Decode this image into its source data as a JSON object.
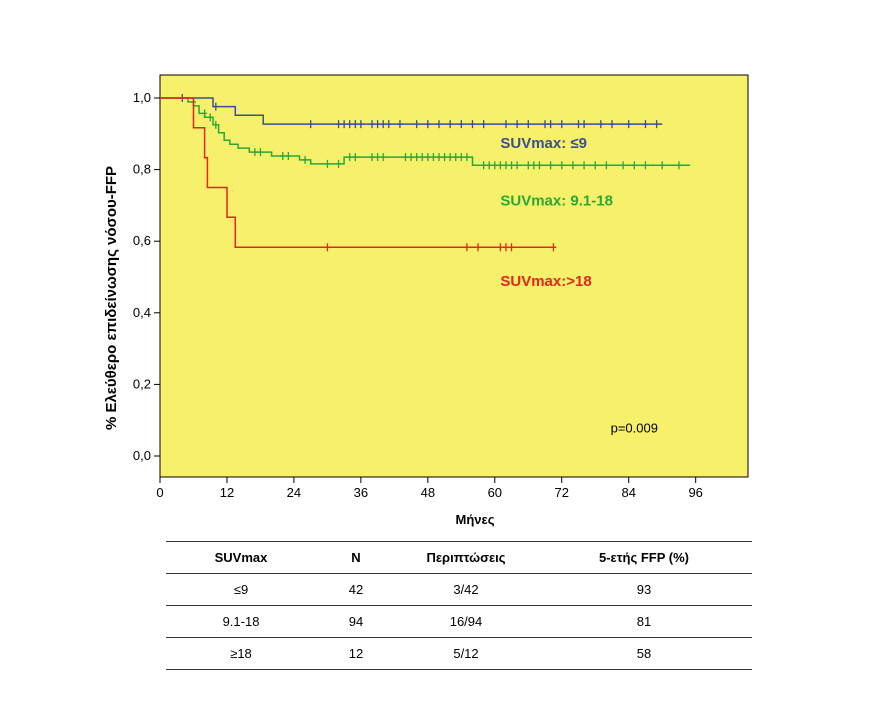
{
  "chart_data": {
    "type": "line",
    "subtype": "kaplan-meier",
    "ylabel": "% Ελεύθερο επιδείνωσης νόσου-FFP",
    "xlabel": "Μήνες",
    "xlim": [
      0,
      105
    ],
    "ylim": [
      -0.05,
      1.07
    ],
    "xticks": [
      0,
      12,
      24,
      36,
      48,
      60,
      72,
      84,
      96
    ],
    "xtick_labels": [
      "0",
      "12",
      "24",
      "36",
      "48",
      "60",
      "72",
      "84",
      "96"
    ],
    "yticks": [
      0.0,
      0.2,
      0.4,
      0.6,
      0.8,
      1.0
    ],
    "ytick_labels": [
      "0,0",
      "0,2",
      "0,4",
      "0,6",
      "0,8",
      "1,0"
    ],
    "plot_background": "#f7f06a",
    "grid": false,
    "annotation": "p=0.009",
    "series": [
      {
        "name": "SUVmax: ≤9",
        "color": "#3a4f94",
        "steps": [
          [
            0,
            1.0
          ],
          [
            9.5,
            1.0
          ],
          [
            9.5,
            0.976
          ],
          [
            13.5,
            0.976
          ],
          [
            13.5,
            0.952
          ],
          [
            18.5,
            0.952
          ],
          [
            18.5,
            0.927
          ],
          [
            90,
            0.927
          ]
        ],
        "censored": [
          [
            4,
            1.0
          ],
          [
            10,
            0.976
          ],
          [
            27,
            0.927
          ],
          [
            32,
            0.927
          ],
          [
            33,
            0.927
          ],
          [
            34,
            0.927
          ],
          [
            35,
            0.927
          ],
          [
            36,
            0.927
          ],
          [
            38,
            0.927
          ],
          [
            39,
            0.927
          ],
          [
            40,
            0.927
          ],
          [
            41,
            0.927
          ],
          [
            43,
            0.927
          ],
          [
            46,
            0.927
          ],
          [
            48,
            0.927
          ],
          [
            50,
            0.927
          ],
          [
            52,
            0.927
          ],
          [
            54,
            0.927
          ],
          [
            56,
            0.927
          ],
          [
            58,
            0.927
          ],
          [
            62,
            0.927
          ],
          [
            64,
            0.927
          ],
          [
            66,
            0.927
          ],
          [
            69,
            0.927
          ],
          [
            70,
            0.927
          ],
          [
            72,
            0.927
          ],
          [
            75,
            0.927
          ],
          [
            76,
            0.927
          ],
          [
            79,
            0.927
          ],
          [
            81,
            0.927
          ],
          [
            84,
            0.927
          ],
          [
            87,
            0.927
          ],
          [
            89,
            0.927
          ]
        ]
      },
      {
        "name": "SUVmax: 9.1-18",
        "color": "#2aa836",
        "steps": [
          [
            0,
            1.0
          ],
          [
            5,
            1.0
          ],
          [
            5,
            0.989
          ],
          [
            6,
            0.989
          ],
          [
            6,
            0.978
          ],
          [
            7,
            0.978
          ],
          [
            7,
            0.957
          ],
          [
            8,
            0.957
          ],
          [
            8,
            0.946
          ],
          [
            9.5,
            0.946
          ],
          [
            9.5,
            0.925
          ],
          [
            10.5,
            0.925
          ],
          [
            10.5,
            0.903
          ],
          [
            11.5,
            0.903
          ],
          [
            11.5,
            0.882
          ],
          [
            12.5,
            0.882
          ],
          [
            12.5,
            0.871
          ],
          [
            14,
            0.871
          ],
          [
            14,
            0.86
          ],
          [
            16,
            0.86
          ],
          [
            16,
            0.849
          ],
          [
            20,
            0.849
          ],
          [
            20,
            0.838
          ],
          [
            25,
            0.838
          ],
          [
            25,
            0.827
          ],
          [
            27,
            0.827
          ],
          [
            27,
            0.816
          ],
          [
            33,
            0.816
          ],
          [
            33,
            0.835
          ],
          [
            56,
            0.835
          ],
          [
            56,
            0.812
          ],
          [
            95,
            0.812
          ]
        ],
        "censored": [
          [
            6,
            0.989
          ],
          [
            8,
            0.957
          ],
          [
            9,
            0.946
          ],
          [
            10,
            0.925
          ],
          [
            17,
            0.849
          ],
          [
            18,
            0.849
          ],
          [
            22,
            0.838
          ],
          [
            23,
            0.838
          ],
          [
            26,
            0.827
          ],
          [
            30,
            0.816
          ],
          [
            32,
            0.816
          ],
          [
            34,
            0.835
          ],
          [
            35,
            0.835
          ],
          [
            38,
            0.835
          ],
          [
            39,
            0.835
          ],
          [
            40,
            0.835
          ],
          [
            44,
            0.835
          ],
          [
            45,
            0.835
          ],
          [
            46,
            0.835
          ],
          [
            47,
            0.835
          ],
          [
            48,
            0.835
          ],
          [
            49,
            0.835
          ],
          [
            50,
            0.835
          ],
          [
            51,
            0.835
          ],
          [
            52,
            0.835
          ],
          [
            53,
            0.835
          ],
          [
            54,
            0.835
          ],
          [
            55,
            0.835
          ],
          [
            58,
            0.812
          ],
          [
            59,
            0.812
          ],
          [
            60,
            0.812
          ],
          [
            61,
            0.812
          ],
          [
            62,
            0.812
          ],
          [
            63,
            0.812
          ],
          [
            64,
            0.812
          ],
          [
            66,
            0.812
          ],
          [
            67,
            0.812
          ],
          [
            68,
            0.812
          ],
          [
            70,
            0.812
          ],
          [
            72,
            0.812
          ],
          [
            74,
            0.812
          ],
          [
            76,
            0.812
          ],
          [
            78,
            0.812
          ],
          [
            80,
            0.812
          ],
          [
            83,
            0.812
          ],
          [
            85,
            0.812
          ],
          [
            87,
            0.812
          ],
          [
            90,
            0.812
          ],
          [
            93,
            0.812
          ]
        ]
      },
      {
        "name": "SUVmax:>18",
        "color": "#e8241c",
        "steps": [
          [
            0,
            1.0
          ],
          [
            6,
            1.0
          ],
          [
            6,
            0.917
          ],
          [
            8,
            0.917
          ],
          [
            8,
            0.833
          ],
          [
            8.5,
            0.833
          ],
          [
            8.5,
            0.75
          ],
          [
            12,
            0.75
          ],
          [
            12,
            0.667
          ],
          [
            13.5,
            0.667
          ],
          [
            13.5,
            0.583
          ],
          [
            71,
            0.583
          ]
        ],
        "censored": [
          [
            30,
            0.583
          ],
          [
            55,
            0.583
          ],
          [
            57,
            0.583
          ],
          [
            61,
            0.583
          ],
          [
            62,
            0.583
          ],
          [
            63,
            0.583
          ],
          [
            70.5,
            0.583
          ]
        ]
      }
    ],
    "series_labels": [
      {
        "text": "SUVmax: ≤9",
        "color": "#3a4f94",
        "x": 61,
        "y": 0.86
      },
      {
        "text": "SUVmax: 9.1-18",
        "color": "#2aa836",
        "x": 61,
        "y": 0.7
      },
      {
        "text": "SUVmax:>18",
        "color": "#e8241c",
        "x": 61,
        "y": 0.475
      }
    ],
    "pvalue_pos": {
      "x": 85,
      "y": 0.065
    }
  },
  "table": {
    "headers": [
      "SUVmax",
      "N",
      "Περιπτώσεις",
      "5-ετής FFP (%)"
    ],
    "rows": [
      [
        "≤9",
        "42",
        "3/42",
        "93"
      ],
      [
        "9.1-18",
        "94",
        "16/94",
        "81"
      ],
      [
        "≥18",
        "12",
        "5/12",
        "58"
      ]
    ]
  }
}
